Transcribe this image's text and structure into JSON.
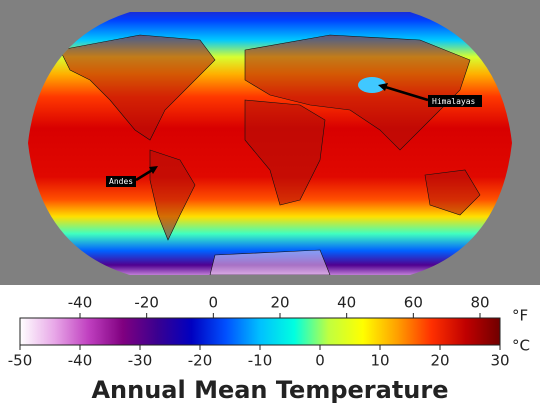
{
  "map": {
    "annotations": [
      "Himalayas",
      "Andes"
    ]
  },
  "colorbar": {
    "title": "Annual Mean Temperature",
    "c_unit": "°C",
    "f_unit": "°F",
    "clim": [
      -50,
      30
    ],
    "cticks": [
      -50,
      -40,
      -30,
      -20,
      -10,
      0,
      10,
      20,
      30
    ],
    "flim": [
      -58,
      86
    ],
    "fticks": [
      -40,
      -20,
      0,
      20,
      40,
      60,
      80
    ],
    "colors": [
      "#ffffff",
      "#e8a8e8",
      "#c040c0",
      "#800080",
      "#3a0090",
      "#0000c0",
      "#0050ff",
      "#00c0ff",
      "#00ffe0",
      "#c0ff40",
      "#ffff00",
      "#ffa000",
      "#ff3000",
      "#c00000",
      "#700000"
    ]
  }
}
